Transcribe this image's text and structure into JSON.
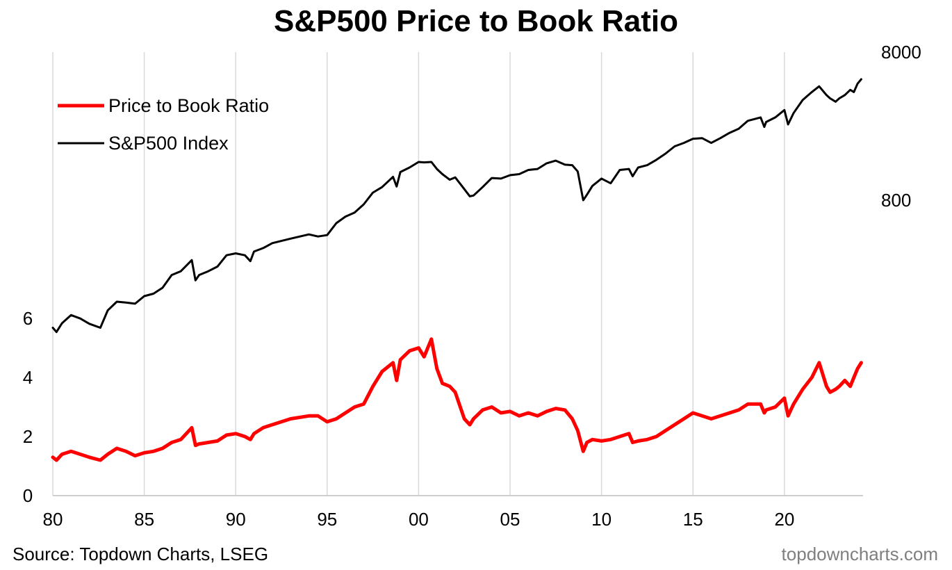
{
  "title": "S&P500 Price to Book Ratio",
  "source": "Source: Topdown Charts, LSEG",
  "brand": "topdowncharts.com",
  "colors": {
    "pb": "#ff0000",
    "spx": "#000000",
    "grid": "#d9d9d9"
  },
  "chart_data": {
    "type": "line",
    "x_axis": {
      "ticks": [
        "80",
        "85",
        "90",
        "95",
        "00",
        "05",
        "10",
        "15",
        "20"
      ],
      "range": [
        1980,
        2024.3
      ],
      "grid": true
    },
    "y_left": {
      "ticks": [
        "0",
        "2",
        "4",
        "6"
      ],
      "range": [
        0,
        16
      ]
    },
    "y_right": {
      "ticks": [
        "800",
        "8000"
      ],
      "scale": "log",
      "range": [
        100,
        8000
      ]
    },
    "legend": {
      "position": "top-left",
      "entries": [
        "Price to Book Ratio",
        "S&P500 Index"
      ]
    },
    "series": [
      {
        "name": "Price to Book Ratio",
        "axis": "left",
        "x": [
          1980.0,
          1980.2,
          1980.5,
          1981.0,
          1981.5,
          1982.0,
          1982.6,
          1983.0,
          1983.5,
          1984.0,
          1984.5,
          1985.0,
          1985.5,
          1986.0,
          1986.5,
          1987.0,
          1987.6,
          1987.8,
          1988.0,
          1988.5,
          1989.0,
          1989.5,
          1990.0,
          1990.5,
          1990.8,
          1991.0,
          1991.5,
          1992.0,
          1993.0,
          1994.0,
          1994.5,
          1995.0,
          1995.5,
          1996.0,
          1996.5,
          1997.0,
          1997.5,
          1998.0,
          1998.6,
          1998.8,
          1999.0,
          1999.5,
          2000.0,
          2000.3,
          2000.7,
          2001.0,
          2001.3,
          2001.7,
          2002.0,
          2002.5,
          2002.8,
          2003.0,
          2003.5,
          2004.0,
          2004.5,
          2005.0,
          2005.5,
          2006.0,
          2006.5,
          2007.0,
          2007.5,
          2008.0,
          2008.4,
          2008.7,
          2009.0,
          2009.2,
          2009.5,
          2010.0,
          2010.5,
          2011.0,
          2011.5,
          2011.7,
          2012.0,
          2012.5,
          2013.0,
          2013.5,
          2014.0,
          2014.5,
          2015.0,
          2015.5,
          2016.0,
          2016.5,
          2017.0,
          2017.5,
          2018.0,
          2018.7,
          2018.9,
          2019.0,
          2019.5,
          2020.0,
          2020.2,
          2020.5,
          2021.0,
          2021.5,
          2021.9,
          2022.3,
          2022.5,
          2022.8,
          2023.0,
          2023.3,
          2023.6,
          2023.8,
          2024.0,
          2024.2
        ],
        "values": [
          1.3,
          1.2,
          1.4,
          1.5,
          1.4,
          1.3,
          1.2,
          1.4,
          1.6,
          1.5,
          1.35,
          1.45,
          1.5,
          1.6,
          1.8,
          1.9,
          2.3,
          1.7,
          1.75,
          1.8,
          1.85,
          2.05,
          2.1,
          2.0,
          1.9,
          2.1,
          2.3,
          2.4,
          2.6,
          2.7,
          2.7,
          2.5,
          2.6,
          2.8,
          3.0,
          3.1,
          3.7,
          4.2,
          4.5,
          3.9,
          4.6,
          4.9,
          5.0,
          4.7,
          5.3,
          4.3,
          3.8,
          3.7,
          3.5,
          2.6,
          2.4,
          2.6,
          2.9,
          3.0,
          2.8,
          2.85,
          2.7,
          2.8,
          2.7,
          2.85,
          2.95,
          2.9,
          2.6,
          2.2,
          1.5,
          1.8,
          1.9,
          1.85,
          1.9,
          2.0,
          2.1,
          1.8,
          1.85,
          1.9,
          2.0,
          2.2,
          2.4,
          2.6,
          2.8,
          2.7,
          2.6,
          2.7,
          2.8,
          2.9,
          3.1,
          3.1,
          2.8,
          2.9,
          3.0,
          3.3,
          2.7,
          3.1,
          3.6,
          4.0,
          4.5,
          3.7,
          3.5,
          3.6,
          3.7,
          3.9,
          3.7,
          4.0,
          4.3,
          4.5
        ]
      },
      {
        "name": "S&P500 Index",
        "axis": "right",
        "x": [
          1980.0,
          1980.2,
          1980.5,
          1981.0,
          1981.5,
          1982.0,
          1982.6,
          1983.0,
          1983.5,
          1984.0,
          1984.5,
          1985.0,
          1985.5,
          1986.0,
          1986.5,
          1987.0,
          1987.6,
          1987.8,
          1988.0,
          1988.5,
          1989.0,
          1989.5,
          1990.0,
          1990.5,
          1990.8,
          1991.0,
          1991.5,
          1992.0,
          1993.0,
          1994.0,
          1994.5,
          1995.0,
          1995.5,
          1996.0,
          1996.5,
          1997.0,
          1997.5,
          1998.0,
          1998.6,
          1998.8,
          1999.0,
          1999.5,
          2000.0,
          2000.3,
          2000.7,
          2001.0,
          2001.3,
          2001.7,
          2002.0,
          2002.5,
          2002.8,
          2003.0,
          2003.5,
          2004.0,
          2004.5,
          2005.0,
          2005.5,
          2006.0,
          2006.5,
          2007.0,
          2007.5,
          2008.0,
          2008.4,
          2008.7,
          2009.0,
          2009.2,
          2009.5,
          2010.0,
          2010.5,
          2011.0,
          2011.5,
          2011.7,
          2012.0,
          2012.5,
          2013.0,
          2013.5,
          2014.0,
          2014.5,
          2015.0,
          2015.5,
          2016.0,
          2016.5,
          2017.0,
          2017.5,
          2018.0,
          2018.7,
          2018.9,
          2019.0,
          2019.5,
          2020.0,
          2020.2,
          2020.5,
          2021.0,
          2021.5,
          2021.9,
          2022.3,
          2022.5,
          2022.8,
          2023.0,
          2023.3,
          2023.6,
          2023.8,
          2024.0,
          2024.2
        ],
        "values": [
          110,
          103,
          118,
          134,
          127,
          117,
          110,
          144,
          165,
          163,
          160,
          180,
          187,
          205,
          250,
          265,
          315,
          230,
          250,
          265,
          285,
          340,
          350,
          340,
          310,
          360,
          380,
          410,
          440,
          470,
          455,
          465,
          560,
          620,
          660,
          750,
          900,
          980,
          1150,
          990,
          1240,
          1330,
          1450,
          1440,
          1450,
          1300,
          1200,
          1100,
          1140,
          950,
          850,
          860,
          980,
          1130,
          1120,
          1180,
          1200,
          1280,
          1300,
          1420,
          1480,
          1390,
          1380,
          1250,
          800,
          870,
          1000,
          1120,
          1040,
          1280,
          1300,
          1160,
          1330,
          1380,
          1500,
          1650,
          1850,
          1950,
          2080,
          2100,
          1950,
          2100,
          2280,
          2430,
          2750,
          2900,
          2500,
          2700,
          2900,
          3250,
          2600,
          3100,
          3800,
          4300,
          4700,
          4100,
          3900,
          3700,
          3900,
          4100,
          4450,
          4300,
          4900,
          5250
        ]
      }
    ]
  }
}
